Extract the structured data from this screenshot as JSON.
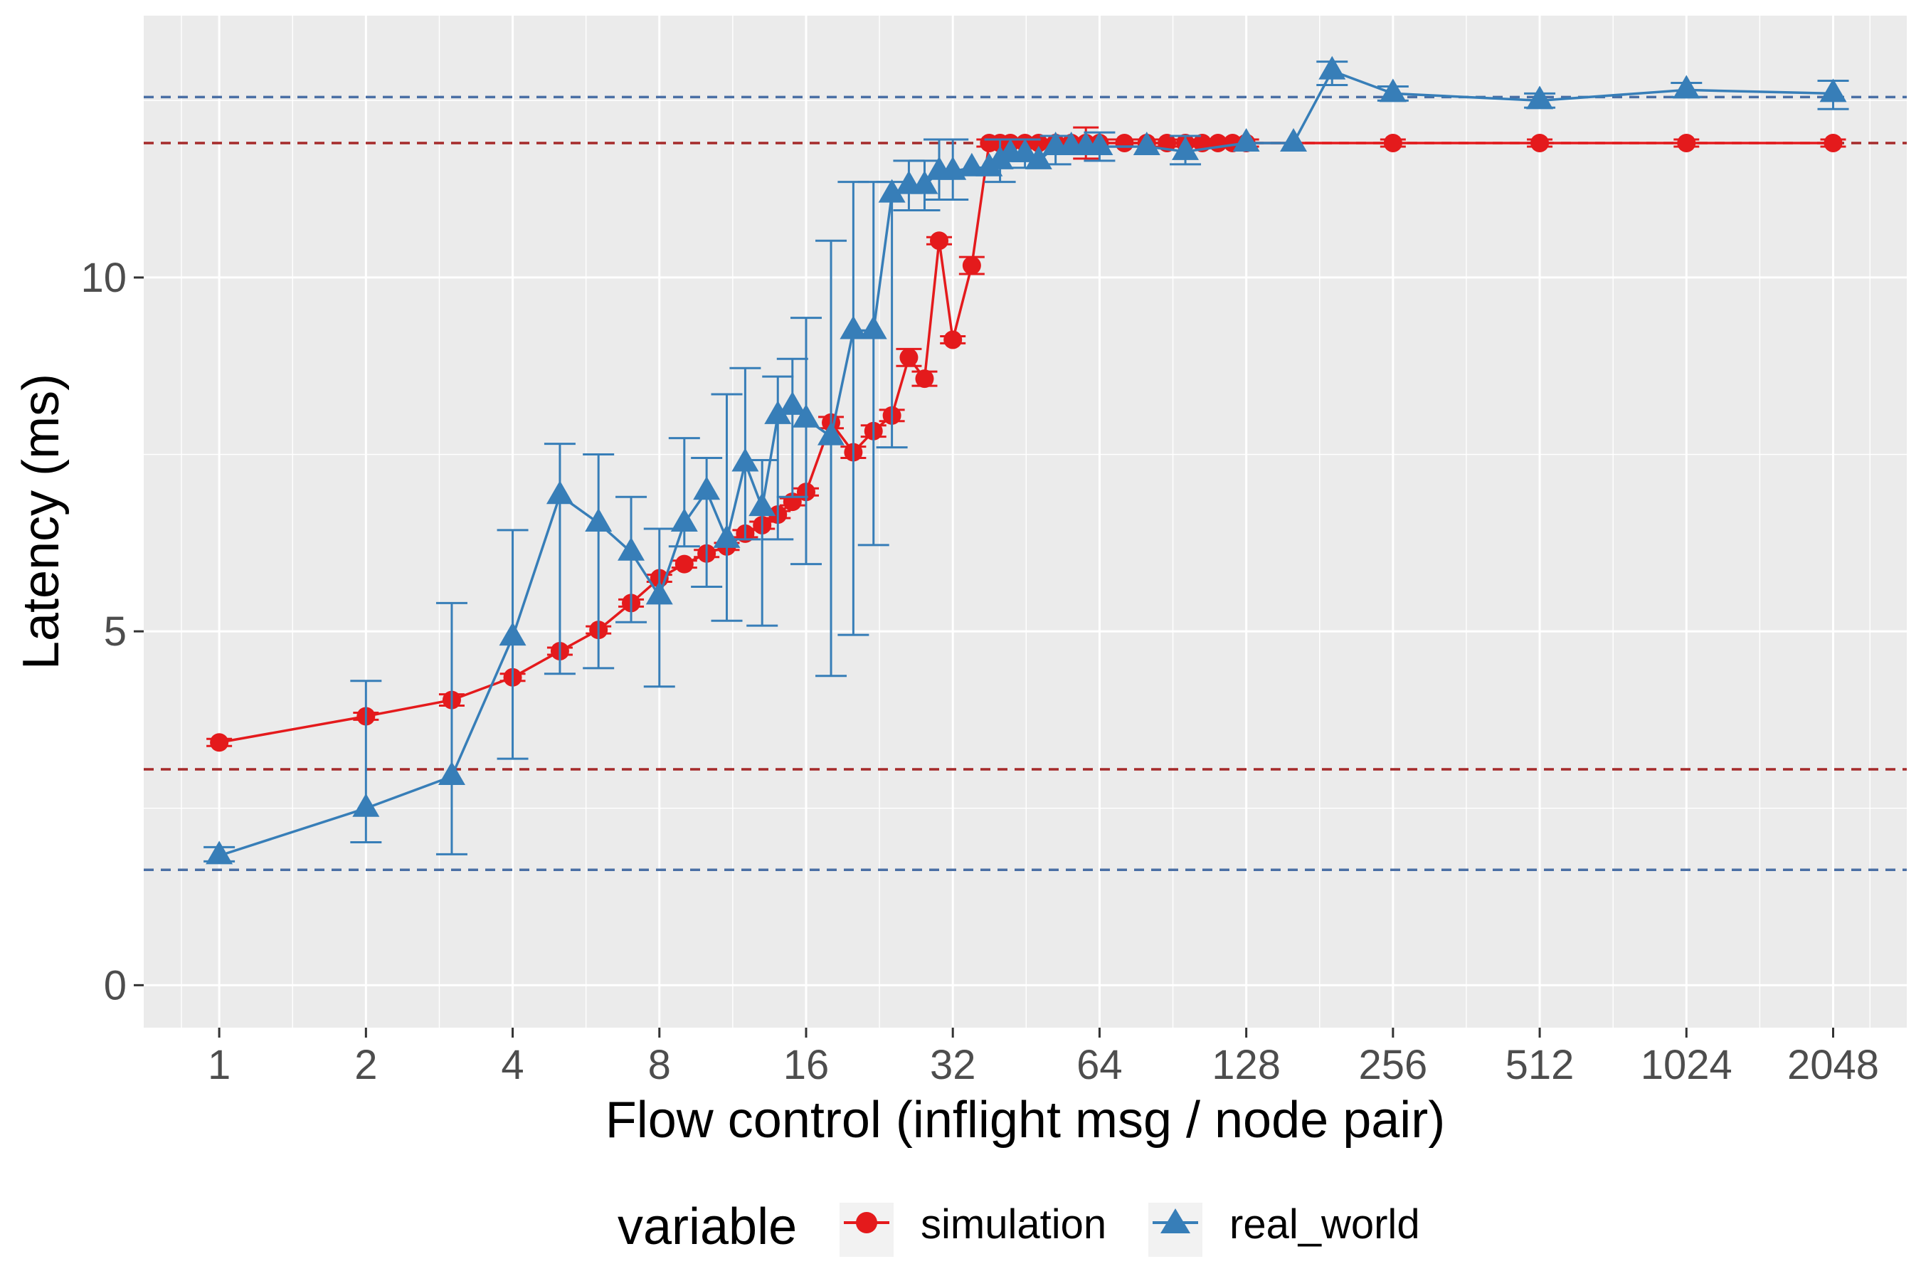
{
  "chart_data": {
    "type": "line",
    "xscale": "log2",
    "xlabel": "Flow control (inflight msg / node pair)",
    "ylabel": "Latency (ms)",
    "xlim": [
      0.7,
      2900
    ],
    "ylim": [
      -0.6,
      13.7
    ],
    "xticks": [
      1,
      2,
      4,
      8,
      16,
      32,
      64,
      128,
      256,
      512,
      1024,
      2048
    ],
    "xtick_labels": [
      "1",
      "2",
      "4",
      "8",
      "16",
      "32",
      "64",
      "128",
      "256",
      "512",
      "1024",
      "2048"
    ],
    "yticks": [
      0,
      5,
      10
    ],
    "ytick_labels": [
      "0",
      "5",
      "10"
    ],
    "grid": true,
    "legend": {
      "title": "variable",
      "position": "bottom",
      "entries": [
        "simulation",
        "real_world"
      ]
    },
    "colors": {
      "simulation": "#e41a1c",
      "real_world": "#377eb8",
      "sim_ref": "#a52a2a",
      "real_ref": "#4a6fa5",
      "panel": "#ebebeb",
      "grid": "#ffffff"
    },
    "reference_lines": [
      {
        "series": "real_world",
        "y": 12.55
      },
      {
        "series": "simulation",
        "y": 11.9
      },
      {
        "series": "simulation",
        "y": 3.05
      },
      {
        "series": "real_world",
        "y": 1.63
      }
    ],
    "series": [
      {
        "name": "simulation",
        "marker": "circle",
        "x": [
          1,
          2,
          3,
          4,
          5,
          6,
          7,
          8,
          9,
          10,
          11,
          12,
          13,
          14,
          15,
          16,
          18,
          20,
          22,
          24,
          26,
          28,
          30,
          32,
          35,
          38,
          40,
          42,
          45,
          48,
          52,
          56,
          60,
          64,
          72,
          80,
          88,
          96,
          104,
          112,
          120,
          128,
          256,
          512,
          1024,
          2048
        ],
        "y": [
          3.43,
          3.8,
          4.03,
          4.35,
          4.72,
          5.02,
          5.4,
          5.75,
          5.95,
          6.1,
          6.2,
          6.38,
          6.5,
          6.65,
          6.83,
          6.97,
          7.95,
          7.53,
          7.83,
          8.05,
          8.87,
          8.57,
          10.52,
          9.12,
          10.17,
          11.9,
          11.9,
          11.9,
          11.9,
          11.9,
          11.9,
          11.9,
          11.9,
          11.9,
          11.9,
          11.9,
          11.9,
          11.9,
          11.9,
          11.9,
          11.9,
          11.9,
          11.9,
          11.9,
          11.9,
          11.9
        ],
        "err": [
          0.05,
          0.05,
          0.08,
          0.05,
          0.05,
          0.05,
          0.05,
          0.05,
          0.05,
          0.05,
          0.05,
          0.05,
          0.05,
          0.05,
          0.05,
          0.05,
          0.08,
          0.08,
          0.08,
          0.08,
          0.12,
          0.1,
          0.05,
          0.05,
          0.12,
          0.05,
          0.05,
          0.05,
          0.05,
          0.05,
          0.05,
          0.05,
          0.22,
          0.05,
          0.05,
          0.05,
          0.05,
          0.05,
          0.05,
          0.05,
          0.05,
          0.05,
          0.05,
          0.05,
          0.05,
          0.05
        ]
      },
      {
        "name": "real_world",
        "marker": "triangle",
        "x": [
          1,
          2,
          3,
          4,
          5,
          6,
          7,
          8,
          9,
          10,
          11,
          12,
          13,
          14,
          15,
          16,
          18,
          20,
          22,
          24,
          26,
          28,
          30,
          32,
          35,
          38,
          40,
          42,
          45,
          48,
          52,
          56,
          60,
          64,
          80,
          96,
          128,
          160,
          192,
          256,
          512,
          1024,
          2048
        ],
        "y": [
          1.83,
          2.5,
          2.95,
          4.92,
          6.92,
          6.53,
          6.12,
          5.5,
          6.53,
          6.98,
          6.3,
          7.38,
          6.75,
          8.05,
          8.18,
          8.0,
          7.75,
          9.25,
          9.25,
          11.18,
          11.3,
          11.3,
          11.5,
          11.5,
          11.55,
          11.55,
          11.65,
          11.75,
          11.75,
          11.65,
          11.85,
          11.85,
          11.85,
          11.85,
          11.85,
          11.78,
          11.9,
          11.9,
          12.92,
          12.6,
          12.5,
          12.65,
          12.6
        ]
      }
    ],
    "real_world_errors": [
      {
        "x": 1,
        "lo": 1.75,
        "hi": 1.95
      },
      {
        "x": 2,
        "lo": 2.02,
        "hi": 4.3
      },
      {
        "x": 3,
        "lo": 1.85,
        "hi": 5.4
      },
      {
        "x": 4,
        "lo": 3.2,
        "hi": 6.43
      },
      {
        "x": 5,
        "lo": 4.4,
        "hi": 7.65
      },
      {
        "x": 6,
        "lo": 4.48,
        "hi": 7.5
      },
      {
        "x": 7,
        "lo": 5.13,
        "hi": 6.9
      },
      {
        "x": 8,
        "lo": 4.22,
        "hi": 6.45
      },
      {
        "x": 9,
        "lo": 6.2,
        "hi": 7.73
      },
      {
        "x": 10,
        "lo": 5.63,
        "hi": 7.45
      },
      {
        "x": 11,
        "lo": 5.15,
        "hi": 8.35
      },
      {
        "x": 12,
        "lo": 6.3,
        "hi": 8.72
      },
      {
        "x": 13,
        "lo": 5.08,
        "hi": 7.42
      },
      {
        "x": 14,
        "lo": 6.3,
        "hi": 8.6
      },
      {
        "x": 15,
        "lo": 6.9,
        "hi": 8.85
      },
      {
        "x": 16,
        "lo": 5.95,
        "hi": 9.43
      },
      {
        "x": 18,
        "lo": 4.37,
        "hi": 10.52
      },
      {
        "x": 20,
        "lo": 4.95,
        "hi": 11.35
      },
      {
        "x": 22,
        "lo": 6.22,
        "hi": 11.35
      },
      {
        "x": 24,
        "lo": 7.6,
        "hi": 11.35
      },
      {
        "x": 26,
        "lo": 10.95,
        "hi": 11.65
      },
      {
        "x": 28,
        "lo": 10.95,
        "hi": 11.65
      },
      {
        "x": 30,
        "lo": 11.1,
        "hi": 11.95
      },
      {
        "x": 32,
        "lo": 11.1,
        "hi": 11.95
      },
      {
        "x": 40,
        "lo": 11.35,
        "hi": 11.95
      },
      {
        "x": 45,
        "lo": 11.55,
        "hi": 11.95
      },
      {
        "x": 52,
        "lo": 11.6,
        "hi": 12.0
      },
      {
        "x": 64,
        "lo": 11.65,
        "hi": 12.05
      },
      {
        "x": 96,
        "lo": 11.6,
        "hi": 12.0
      },
      {
        "x": 192,
        "lo": 12.72,
        "hi": 13.05
      },
      {
        "x": 256,
        "lo": 12.5,
        "hi": 12.7
      },
      {
        "x": 512,
        "lo": 12.4,
        "hi": 12.6
      },
      {
        "x": 1024,
        "lo": 12.55,
        "hi": 12.75
      },
      {
        "x": 2048,
        "lo": 12.38,
        "hi": 12.78
      }
    ]
  }
}
